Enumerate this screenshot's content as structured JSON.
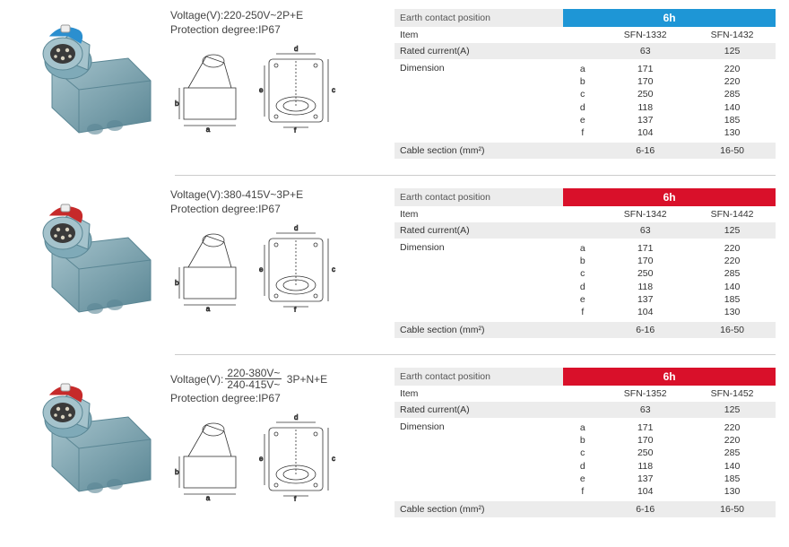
{
  "rows": [
    {
      "voltage_prefix": "Voltage(V):",
      "voltage_value": "220-250V~2P+E",
      "voltage_is_fraction": false,
      "protection": "Protection degree:IP67",
      "connector_color": "#2b8fcf",
      "ecp_color": "#1e96d6",
      "ecp_label": "6h",
      "item1": "SFN-1332",
      "item2": "SFN-1432",
      "rated1": "63",
      "rated2": "125",
      "dim_labels": [
        "a",
        "b",
        "c",
        "d",
        "e",
        "f"
      ],
      "dim1": [
        "171",
        "170",
        "250",
        "118",
        "137",
        "104"
      ],
      "dim2": [
        "220",
        "220",
        "285",
        "140",
        "185",
        "130"
      ],
      "cable1": "6-16",
      "cable2": "16-50"
    },
    {
      "voltage_prefix": "Voltage(V):",
      "voltage_value": "380-415V~3P+E",
      "voltage_is_fraction": false,
      "protection": "Protection degree:IP67",
      "connector_color": "#c62a2a",
      "ecp_color": "#d9102a",
      "ecp_label": "6h",
      "item1": "SFN-1342",
      "item2": "SFN-1442",
      "rated1": "63",
      "rated2": "125",
      "dim_labels": [
        "a",
        "b",
        "c",
        "d",
        "e",
        "f"
      ],
      "dim1": [
        "171",
        "170",
        "250",
        "118",
        "137",
        "104"
      ],
      "dim2": [
        "220",
        "220",
        "285",
        "140",
        "185",
        "130"
      ],
      "cable1": "6-16",
      "cable2": "16-50"
    },
    {
      "voltage_prefix": "Voltage(V):",
      "voltage_num": "220-380V~",
      "voltage_den": "240-415V~",
      "voltage_suffix": "3P+N+E",
      "voltage_is_fraction": true,
      "protection": "Protection degree:IP67",
      "connector_color": "#c62a2a",
      "ecp_color": "#d9102a",
      "ecp_label": "6h",
      "item1": "SFN-1352",
      "item2": "SFN-1452",
      "rated1": "63",
      "rated2": "125",
      "dim_labels": [
        "a",
        "b",
        "c",
        "d",
        "e",
        "f"
      ],
      "dim1": [
        "171",
        "170",
        "250",
        "118",
        "137",
        "104"
      ],
      "dim2": [
        "220",
        "220",
        "285",
        "140",
        "185",
        "130"
      ],
      "cable1": "6-16",
      "cable2": "16-50"
    }
  ],
  "labels": {
    "earth_contact": "Earth contact position",
    "item": "Item",
    "rated_current": "Rated current(A)",
    "dimension": "Dimension",
    "cable_section": "Cable section (mm²)"
  },
  "colors": {
    "body": "#7faab8",
    "body_dark": "#5a8694",
    "body_light": "#a5c3cc"
  }
}
